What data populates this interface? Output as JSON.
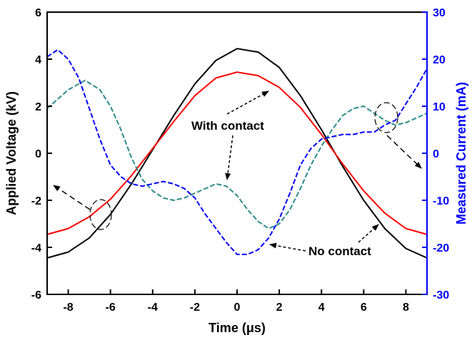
{
  "chart_data": {
    "type": "line",
    "title": "",
    "xlabel": "Time (μs)",
    "ylabel_left": "Applied Voltage (kV)",
    "ylabel_right": "Measured Current (mA)",
    "xlim": [
      -9,
      9
    ],
    "ylim_left": [
      -6,
      6
    ],
    "ylim_right": [
      -30,
      30
    ],
    "x_ticks": [
      -8,
      -6,
      -4,
      -2,
      0,
      2,
      4,
      6,
      8
    ],
    "y_left_ticks": [
      -6,
      -4,
      -2,
      0,
      2,
      4,
      6
    ],
    "y_right_ticks": [
      -30,
      -20,
      -10,
      0,
      10,
      20,
      30
    ],
    "annotations": [
      "With contact",
      "No contact"
    ],
    "colors": {
      "axis_left": "#000000",
      "axis_right": "#0000ff"
    },
    "series": [
      {
        "axis": "left",
        "color": "#000000",
        "style": "solid",
        "x": [
          -9,
          -8,
          -7,
          -6,
          -5,
          -4,
          -3,
          -2,
          -1,
          0,
          1,
          2,
          3,
          4,
          5,
          6,
          7,
          8,
          9
        ],
        "y": [
          -4.45,
          -4.2,
          -3.6,
          -2.6,
          -1.3,
          0.15,
          1.6,
          2.95,
          3.95,
          4.45,
          4.3,
          3.65,
          2.45,
          1.0,
          -0.55,
          -2.0,
          -3.2,
          -4.05,
          -4.45
        ]
      },
      {
        "axis": "left",
        "color": "#ff0000",
        "style": "solid",
        "x": [
          -9,
          -8,
          -7,
          -6,
          -5,
          -4,
          -3,
          -2,
          -1,
          0,
          1,
          2,
          3,
          4,
          5,
          6,
          7,
          8,
          9
        ],
        "y": [
          -3.45,
          -3.2,
          -2.7,
          -1.95,
          -0.95,
          0.2,
          1.35,
          2.45,
          3.2,
          3.45,
          3.3,
          2.8,
          1.95,
          0.8,
          -0.45,
          -1.6,
          -2.55,
          -3.2,
          -3.45
        ]
      },
      {
        "axis": "right",
        "color": "#2e8b8b",
        "style": "dashed",
        "x": [
          -9,
          -8,
          -7.2,
          -6.5,
          -6,
          -5.5,
          -5,
          -4.5,
          -4,
          -3.5,
          -3,
          -2.5,
          -2,
          -1.5,
          -1,
          -0.5,
          0,
          0.5,
          1,
          1.5,
          2,
          2.5,
          3,
          3.5,
          4,
          4.5,
          5,
          5.5,
          6,
          6.5,
          7,
          7.5,
          8,
          8.5,
          9
        ],
        "y": [
          9.5,
          13.5,
          15.5,
          13.5,
          10,
          5,
          -1,
          -5.5,
          -8,
          -9.5,
          -10,
          -9.5,
          -8.5,
          -7.5,
          -6.5,
          -7,
          -9,
          -12,
          -14.5,
          -16,
          -15,
          -12,
          -7.5,
          -2.5,
          1.5,
          5,
          8,
          9.5,
          10,
          8.5,
          7,
          6,
          6.5,
          7.5,
          8.5
        ]
      },
      {
        "axis": "right",
        "color": "#0000ff",
        "style": "dashed",
        "x": [
          -9,
          -8.5,
          -8,
          -7.5,
          -7,
          -6.5,
          -6,
          -5.5,
          -5,
          -4.5,
          -4,
          -3.5,
          -3,
          -2.5,
          -2,
          -1.5,
          -1,
          -0.5,
          0,
          0.5,
          1,
          1.5,
          2,
          2.5,
          3,
          3.5,
          4,
          4.5,
          5,
          5.5,
          6,
          6.5,
          7,
          7.5,
          8,
          8.5,
          9
        ],
        "y": [
          20.5,
          22,
          20,
          16,
          9.5,
          3,
          -2.5,
          -5,
          -6.5,
          -7,
          -6.5,
          -6,
          -6.5,
          -7.5,
          -9.5,
          -13,
          -16,
          -19,
          -21.5,
          -21.5,
          -20.5,
          -18,
          -14,
          -8.5,
          -2.5,
          1,
          3,
          3.5,
          4,
          4,
          4.5,
          4.5,
          6,
          7,
          10.5,
          14,
          18
        ]
      }
    ]
  }
}
